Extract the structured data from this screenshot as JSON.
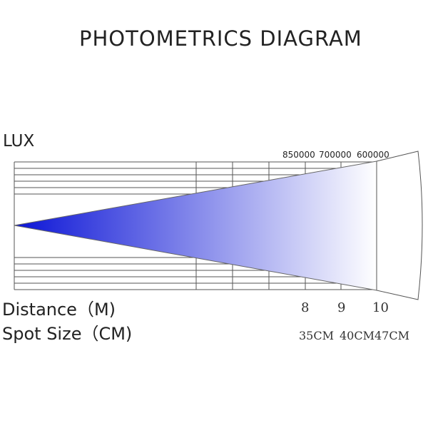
{
  "title": "PHOTOMETRICS DIAGRAM",
  "lux_label": "LUX",
  "lux_values": [
    "850000",
    "700000",
    "600000"
  ],
  "distance_label": "Distance（M)",
  "distances": [
    "8",
    "9",
    "10"
  ],
  "spot_label": "Spot Size（CM)",
  "spot_sizes": [
    "35CM",
    "40CM",
    "47CM"
  ],
  "beam_colors": {
    "start": "#0b14d6",
    "end": "#ffffff"
  }
}
